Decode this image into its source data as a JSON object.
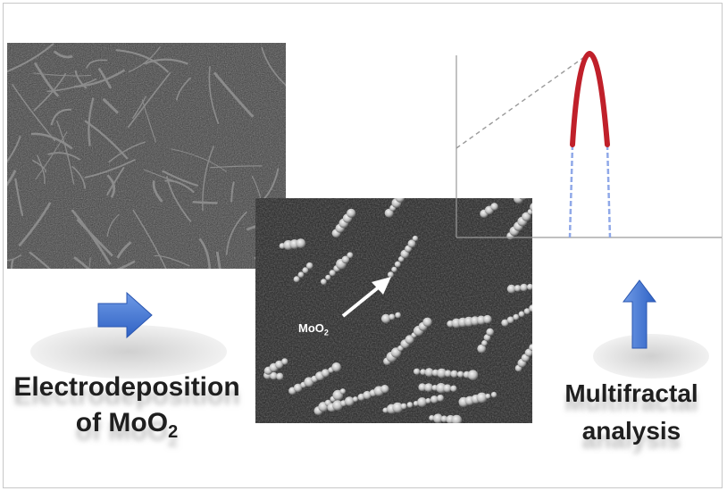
{
  "labels": {
    "electrodeposition": "Electrodeposition",
    "of_prefix": "of MoO",
    "of_subscript": "2",
    "multifractal": "Multifractal",
    "analysis": "analysis",
    "mo2_prefix": "MoO",
    "mo2_subscript": "2"
  },
  "colors": {
    "arrow_blue": "#4a7fd4",
    "curve_red": "#c0202a",
    "curve_blue": "#8fa8e8",
    "axis_gray": "#9a9a9a"
  },
  "icons": {
    "right_arrow": "arrow-right-icon",
    "up_arrow": "arrow-up-icon",
    "callout_arrow": "arrow-diagonal-icon"
  }
}
